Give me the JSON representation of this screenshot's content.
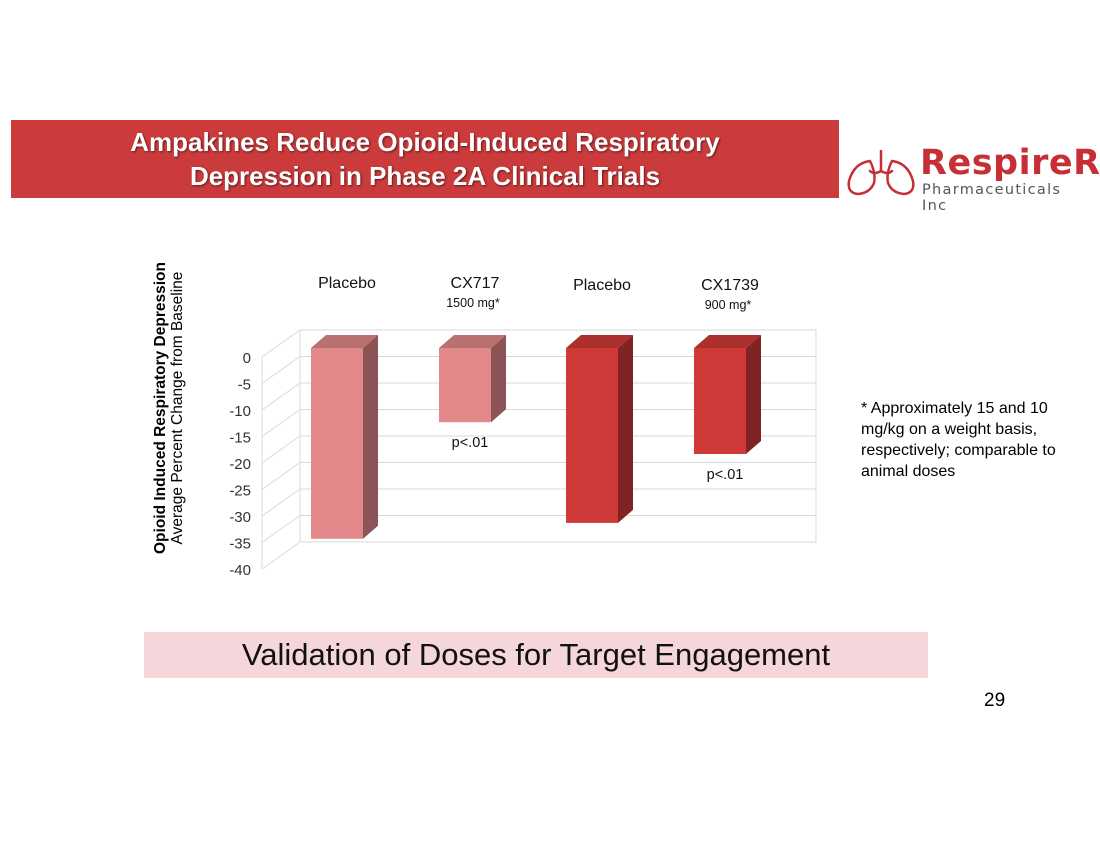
{
  "slide": {
    "title": "Ampakines Reduce Opioid-Induced Respiratory Depression in Phase 2A Clinical Trials",
    "logo": {
      "name": "RespireRx",
      "subtitle": "Pharmaceuticals Inc"
    },
    "footnote": "* Approximately 15 and 10 mg/kg on a weight basis, respectively; comparable to animal doses",
    "bottom_banner": "Validation of Doses for Target Engagement",
    "page_number": "29"
  },
  "colors": {
    "title_banner": "#cc3b3b",
    "bottom_banner": "#f5d6da",
    "bar_light": "#e2888a",
    "bar_dark": "#cf3a38",
    "logo_red": "#c62f36"
  },
  "chart_data": {
    "type": "bar",
    "title": "",
    "ylabel_line1": "Opioid Induced Respiratory Depression",
    "ylabel_line2": "Average Percent Change from Baseline",
    "ylim": [
      -40,
      0
    ],
    "yticks": [
      0,
      -5,
      -10,
      -15,
      -20,
      -25,
      -30,
      -35,
      -40
    ],
    "grid": true,
    "three_d": true,
    "bars": [
      {
        "label": "Placebo",
        "sublabel": "",
        "value": -36,
        "annotation": "",
        "color": "#e2888a"
      },
      {
        "label": "CX717",
        "sublabel": "1500 mg*",
        "value": -14,
        "annotation": "p<.01",
        "color": "#e2888a"
      },
      {
        "label": "Placebo",
        "sublabel": "",
        "value": -33,
        "annotation": "",
        "color": "#cf3a38"
      },
      {
        "label": "CX1739",
        "sublabel": "900 mg*",
        "value": -20,
        "annotation": "p<.01",
        "color": "#cf3a38"
      }
    ]
  }
}
